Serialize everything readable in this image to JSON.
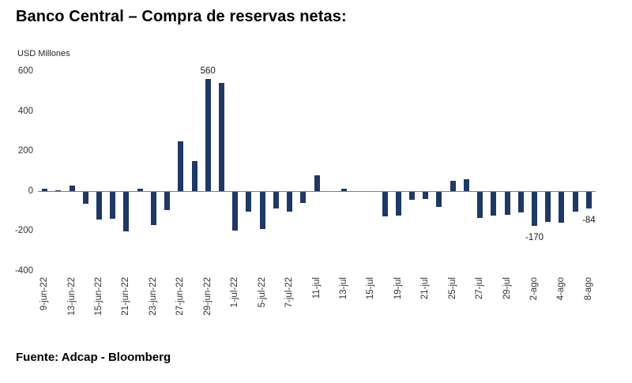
{
  "title": "Banco Central – Compra de reservas netas:",
  "source": "Fuente: Adcap - Bloomberg",
  "chart_data": {
    "type": "bar",
    "title": "Banco Central – Compra de reservas netas:",
    "xlabel": "",
    "ylabel": "USD Millones",
    "ylim": [
      -400,
      600
    ],
    "yticks": [
      600,
      400,
      200,
      0,
      -200,
      -400
    ],
    "grid": false,
    "legend": false,
    "bar_color": "#1f3864",
    "n_bars": 41,
    "values": [
      10,
      4,
      25,
      -60,
      -140,
      -135,
      -200,
      12,
      -165,
      -90,
      250,
      150,
      560,
      540,
      -195,
      -100,
      -185,
      -85,
      -100,
      -55,
      80,
      0,
      12,
      0,
      0,
      -125,
      -120,
      -40,
      -35,
      -75,
      50,
      60,
      -130,
      -120,
      -115,
      -105,
      -170,
      -150,
      -155,
      -100,
      -84
    ],
    "tick_every": 2,
    "x_tick_labels": [
      "9-jun-22",
      "13-jun-22",
      "15-jun-22",
      "21-jun-22",
      "23-jun-22",
      "27-jun-22",
      "29-jun-22",
      "1-jul-22",
      "5-jul-22",
      "7-jul-22",
      "11-jul",
      "13-jul",
      "15-jul",
      "19-jul",
      "21-jul",
      "25-jul",
      "27-jul",
      "29-jul",
      "2-ago",
      "4-ago",
      "8-ago"
    ],
    "annotations": [
      {
        "bar_index": 12,
        "text": "560",
        "placement": "above"
      },
      {
        "bar_index": 36,
        "text": "-170",
        "placement": "below"
      },
      {
        "bar_index": 40,
        "text": "-84",
        "placement": "below"
      }
    ]
  }
}
